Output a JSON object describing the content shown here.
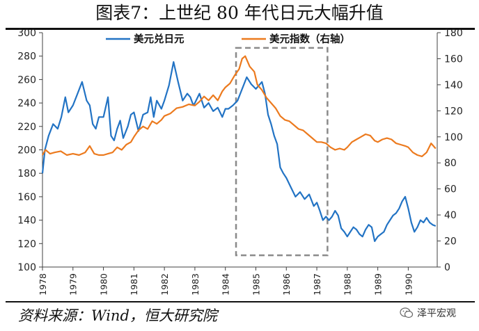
{
  "header": {
    "title": "图表7：上世纪 80 年代日元大幅升值"
  },
  "footer": {
    "source": "资料来源：Wind，恒大研究院",
    "watermark": "泽平宏观"
  },
  "colors": {
    "usdjpy": "#2273C4",
    "dxy": "#EC7A1E",
    "highlight_box": "#8A8A8A",
    "axis": "#404040"
  },
  "chart_data": {
    "type": "line",
    "title": "图表7：上世纪 80 年代日元大幅升值",
    "x_tick_labels": [
      "1978",
      "1979",
      "1980",
      "1981",
      "1982",
      "1983",
      "1984",
      "1985",
      "1986",
      "1987",
      "1988",
      "1989",
      "1990"
    ],
    "x_range": [
      1978.0,
      1990.95
    ],
    "y_left": {
      "range": [
        100,
        300
      ],
      "ticks": [
        100,
        120,
        140,
        160,
        180,
        200,
        220,
        240,
        260,
        280,
        300
      ]
    },
    "y_right": {
      "label": "右轴",
      "range": [
        0,
        180
      ],
      "ticks": [
        0,
        20,
        40,
        60,
        80,
        100,
        120,
        140,
        160,
        180
      ]
    },
    "legend": {
      "placement": "top-center",
      "entries": [
        "美元兑日元",
        "美元指数（右轴）"
      ]
    },
    "highlight": {
      "x_range": [
        1984.35,
        1987.35
      ],
      "style": "dashed-box",
      "y_range_left": [
        110,
        287
      ]
    },
    "series": [
      {
        "name": "美元兑日元",
        "axis": "left",
        "x": [
          1978.0,
          1978.08,
          1978.2,
          1978.35,
          1978.5,
          1978.62,
          1978.75,
          1978.85,
          1979.0,
          1979.15,
          1979.3,
          1979.45,
          1979.55,
          1979.65,
          1979.75,
          1979.85,
          1980.0,
          1980.15,
          1980.25,
          1980.35,
          1980.45,
          1980.55,
          1980.65,
          1980.8,
          1980.9,
          1981.0,
          1981.15,
          1981.3,
          1981.45,
          1981.55,
          1981.65,
          1981.75,
          1981.9,
          1982.0,
          1982.15,
          1982.3,
          1982.45,
          1982.6,
          1982.75,
          1982.85,
          1982.95,
          1983.0,
          1983.15,
          1983.3,
          1983.45,
          1983.6,
          1983.75,
          1983.9,
          1984.0,
          1984.1,
          1984.25,
          1984.4,
          1984.55,
          1984.7,
          1984.85,
          1985.0,
          1985.1,
          1985.2,
          1985.3,
          1985.4,
          1985.5,
          1985.6,
          1985.7,
          1985.8,
          1985.9,
          1986.0,
          1986.15,
          1986.3,
          1986.45,
          1986.6,
          1986.75,
          1986.9,
          1987.0,
          1987.1,
          1987.2,
          1987.3,
          1987.4,
          1987.5,
          1987.6,
          1987.7,
          1987.8,
          1987.9,
          1988.0,
          1988.1,
          1988.2,
          1988.3,
          1988.4,
          1988.5,
          1988.6,
          1988.7,
          1988.8,
          1988.9,
          1989.0,
          1989.1,
          1989.2,
          1989.3,
          1989.4,
          1989.5,
          1989.6,
          1989.7,
          1989.8,
          1989.9,
          1990.0,
          1990.1,
          1990.2,
          1990.3,
          1990.4,
          1990.5,
          1990.6,
          1990.7,
          1990.8,
          1990.9
        ],
        "values": [
          180,
          200,
          212,
          222,
          218,
          228,
          245,
          232,
          238,
          248,
          258,
          242,
          238,
          222,
          218,
          228,
          228,
          245,
          212,
          208,
          218,
          225,
          210,
          220,
          230,
          232,
          216,
          230,
          232,
          245,
          228,
          242,
          235,
          242,
          255,
          275,
          258,
          242,
          248,
          245,
          238,
          240,
          248,
          236,
          240,
          233,
          236,
          228,
          235,
          235,
          238,
          242,
          252,
          262,
          256,
          252,
          255,
          258,
          248,
          230,
          222,
          212,
          205,
          185,
          180,
          176,
          168,
          160,
          164,
          158,
          162,
          152,
          155,
          148,
          140,
          143,
          140,
          143,
          148,
          144,
          133,
          130,
          126,
          130,
          134,
          132,
          128,
          126,
          132,
          136,
          134,
          122,
          126,
          128,
          130,
          136,
          140,
          144,
          146,
          150,
          156,
          160,
          150,
          138,
          130,
          134,
          140,
          138,
          142,
          138,
          136,
          135
        ]
      },
      {
        "name": "美元指数（右轴）",
        "axis": "right",
        "x": [
          1978.0,
          1978.1,
          1978.25,
          1978.4,
          1978.6,
          1978.8,
          1979.0,
          1979.2,
          1979.4,
          1979.55,
          1979.7,
          1979.85,
          1980.0,
          1980.15,
          1980.3,
          1980.45,
          1980.6,
          1980.75,
          1980.9,
          1981.0,
          1981.15,
          1981.3,
          1981.45,
          1981.6,
          1981.75,
          1981.9,
          1982.0,
          1982.2,
          1982.4,
          1982.6,
          1982.8,
          1983.0,
          1983.15,
          1983.3,
          1983.45,
          1983.6,
          1983.75,
          1983.9,
          1984.0,
          1984.15,
          1984.3,
          1984.45,
          1984.55,
          1984.65,
          1984.8,
          1984.95,
          1985.05,
          1985.2,
          1985.35,
          1985.5,
          1985.65,
          1985.8,
          1985.95,
          1986.1,
          1986.25,
          1986.4,
          1986.55,
          1986.7,
          1986.85,
          1987.0,
          1987.15,
          1987.3,
          1987.45,
          1987.6,
          1987.75,
          1987.9,
          1988.0,
          1988.15,
          1988.3,
          1988.45,
          1988.6,
          1988.75,
          1988.9,
          1989.0,
          1989.15,
          1989.3,
          1989.45,
          1989.6,
          1989.75,
          1989.9,
          1990.0,
          1990.15,
          1990.3,
          1990.45,
          1990.6,
          1990.75,
          1990.9
        ],
        "values": [
          86,
          90,
          87,
          88,
          89,
          86,
          87,
          86,
          88,
          93,
          87,
          86,
          86,
          87,
          88,
          92,
          90,
          94,
          96,
          100,
          105,
          108,
          106,
          112,
          110,
          113,
          116,
          118,
          122,
          123,
          125,
          124,
          127,
          131,
          128,
          132,
          128,
          135,
          138,
          141,
          147,
          152,
          160,
          162,
          154,
          150,
          140,
          136,
          130,
          126,
          122,
          116,
          113,
          112,
          109,
          106,
          105,
          102,
          99,
          96,
          96,
          95,
          92,
          90,
          91,
          90,
          92,
          96,
          98,
          100,
          102,
          101,
          97,
          96,
          98,
          99,
          98,
          95,
          94,
          93,
          92,
          88,
          86,
          85,
          88,
          95,
          91
        ]
      }
    ]
  }
}
